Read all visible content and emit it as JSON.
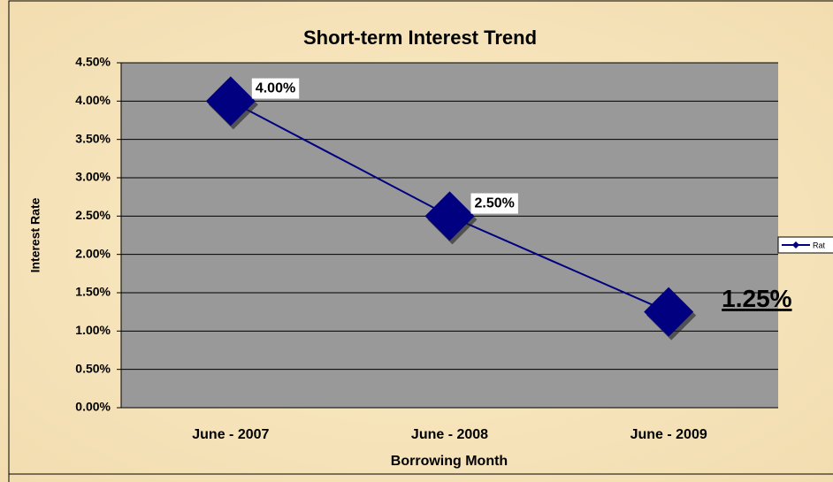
{
  "chart_data": {
    "type": "line",
    "title": "Short-term Interest Trend",
    "x_label": "Borrowing Month",
    "y_label": "Interest Rate",
    "categories": [
      "June - 2007",
      "June - 2008",
      "June - 2009"
    ],
    "series": [
      {
        "name": "Rat",
        "color": "#000080",
        "values": [
          4,
          2.5,
          1.25
        ],
        "value_labels": [
          "4.00%",
          "2.50%",
          "1.25%"
        ]
      }
    ],
    "ylim": [
      0,
      4.5
    ],
    "yticks": [
      {
        "value": 0,
        "label": "0.00%"
      },
      {
        "value": 0.5,
        "label": "0.50%"
      },
      {
        "value": 1,
        "label": "1.00%"
      },
      {
        "value": 1.5,
        "label": "1.50%"
      },
      {
        "value": 2,
        "label": "2.00%"
      },
      {
        "value": 2.5,
        "label": "2.50%"
      },
      {
        "value": 3,
        "label": "3.00%"
      },
      {
        "value": 3.5,
        "label": "3.50%"
      },
      {
        "value": 4,
        "label": "4.00%"
      },
      {
        "value": 4.5,
        "label": "4.50%"
      }
    ],
    "grid": true,
    "legend": "right",
    "plot_color": "#999999"
  }
}
